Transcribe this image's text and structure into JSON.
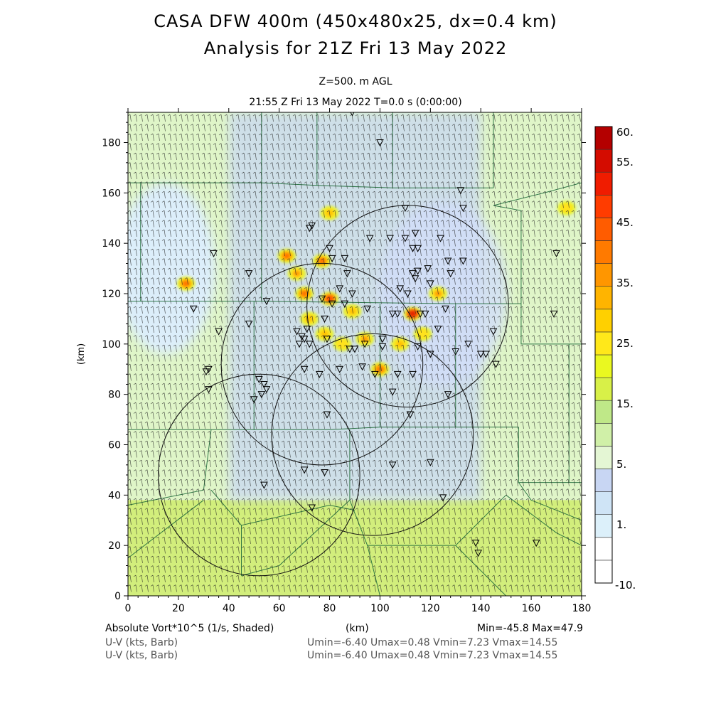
{
  "title_line1": "CASA DFW 400m (450x480x25, dx=0.4 km)",
  "title_line2": "Analysis for 21Z Fri 13 May 2022",
  "level_label": "Z=500. m AGL",
  "time_label": "21:55 Z Fri 13 May 2022    T=0.0 s (0:00:00)",
  "footer": {
    "field_label": "Absolute Vort*10^5 (1/s, Shaded)",
    "x_unit_label": "(km)",
    "minmax": "Min=-45.8 Max=47.9",
    "barb_label_1": "U-V (kts, Barb)",
    "barb_label_2": "U-V (kts, Barb)",
    "barb_stats_1": "Umin=-6.40 Umax=0.48 Vmin=7.23 Vmax=14.55",
    "barb_stats_2": "Umin=-6.40 Umax=0.48 Vmin=7.23 Vmax=14.55"
  },
  "colors": {
    "map_lines": "#1f6b3a",
    "radar_circles": "#111111",
    "barbs": "#222222",
    "stations": "#000000"
  },
  "chart_data": {
    "type": "heatmap",
    "field": "absolute vorticity",
    "xlabel": "",
    "ylabel": "(km)",
    "xlim": [
      0,
      180
    ],
    "ylim": [
      0,
      192
    ],
    "xticks": [
      0,
      20,
      40,
      60,
      80,
      100,
      120,
      140,
      160,
      180
    ],
    "yticks": [
      0,
      20,
      40,
      60,
      80,
      100,
      120,
      140,
      160,
      180
    ],
    "colorbar": {
      "labeled_levels": [
        "60.",
        "55.",
        "45.",
        "35.",
        "25.",
        "15.",
        "5.",
        "1.",
        "-10."
      ],
      "colors": [
        "#ffffff",
        "#ffffff",
        "#dcf0fa",
        "#cfe4f6",
        "#c8d6f3",
        "#e4f6d4",
        "#d0f0a8",
        "#bfe888",
        "#d8f048",
        "#eaf820",
        "#ffe81a",
        "#ffd000",
        "#ffb400",
        "#ff9600",
        "#ff7a00",
        "#ff5c00",
        "#ff3c00",
        "#f01c00",
        "#d40c00",
        "#b40000"
      ]
    },
    "background_regions": [
      {
        "x": [
          0,
          180
        ],
        "y": [
          0,
          38
        ],
        "level": "10-15"
      },
      {
        "x": [
          40,
          140
        ],
        "y": [
          38,
          192
        ],
        "level": "1-3"
      }
    ],
    "vorticity_cells": [
      {
        "x": 80,
        "y": 152,
        "value": 25
      },
      {
        "x": 63,
        "y": 135,
        "value": 35
      },
      {
        "x": 77,
        "y": 133,
        "value": 35
      },
      {
        "x": 67,
        "y": 128,
        "value": 30
      },
      {
        "x": 70,
        "y": 120,
        "value": 35
      },
      {
        "x": 80,
        "y": 118,
        "value": 40
      },
      {
        "x": 89,
        "y": 113,
        "value": 25
      },
      {
        "x": 113,
        "y": 112,
        "value": 45
      },
      {
        "x": 123,
        "y": 120,
        "value": 30
      },
      {
        "x": 23,
        "y": 124,
        "value": 35
      },
      {
        "x": 78,
        "y": 104,
        "value": 25
      },
      {
        "x": 94,
        "y": 102,
        "value": 30
      },
      {
        "x": 108,
        "y": 100,
        "value": 25
      },
      {
        "x": 100,
        "y": 90,
        "value": 35
      },
      {
        "x": 85,
        "y": 100,
        "value": 20
      },
      {
        "x": 117,
        "y": 104,
        "value": 20
      },
      {
        "x": 72,
        "y": 110,
        "value": 25
      },
      {
        "x": 174,
        "y": 154,
        "value": 20
      }
    ],
    "radar_circles": [
      {
        "cx": 111,
        "cy": 115,
        "r": 40
      },
      {
        "cx": 77,
        "cy": 92,
        "r": 40
      },
      {
        "cx": 52,
        "cy": 48,
        "r": 40
      },
      {
        "cx": 97,
        "cy": 64,
        "r": 40
      }
    ],
    "stations": [
      [
        89,
        192
      ],
      [
        100,
        180
      ],
      [
        132,
        161
      ],
      [
        133,
        154
      ],
      [
        110,
        154
      ],
      [
        73,
        147
      ],
      [
        72,
        146
      ],
      [
        104,
        142
      ],
      [
        96,
        142
      ],
      [
        110,
        142
      ],
      [
        114,
        144
      ],
      [
        113,
        138
      ],
      [
        115,
        138
      ],
      [
        124,
        142
      ],
      [
        133,
        133
      ],
      [
        127,
        133
      ],
      [
        128,
        128
      ],
      [
        119,
        130
      ],
      [
        115,
        129
      ],
      [
        120,
        124
      ],
      [
        114,
        126
      ],
      [
        113,
        128
      ],
      [
        108,
        122
      ],
      [
        111,
        120
      ],
      [
        34,
        136
      ],
      [
        48,
        128
      ],
      [
        80,
        138
      ],
      [
        81,
        134
      ],
      [
        86,
        134
      ],
      [
        87,
        128
      ],
      [
        84,
        122
      ],
      [
        86,
        116
      ],
      [
        89,
        120
      ],
      [
        81,
        116
      ],
      [
        77,
        118
      ],
      [
        78,
        110
      ],
      [
        26,
        114
      ],
      [
        36,
        105
      ],
      [
        48,
        108
      ],
      [
        55,
        117
      ],
      [
        67,
        105
      ],
      [
        69,
        103
      ],
      [
        71,
        106
      ],
      [
        95,
        114
      ],
      [
        105,
        112
      ],
      [
        107,
        112
      ],
      [
        116,
        112
      ],
      [
        118,
        112
      ],
      [
        126,
        114
      ],
      [
        123,
        106
      ],
      [
        135,
        100
      ],
      [
        142,
        96
      ],
      [
        145,
        105
      ],
      [
        146,
        92
      ],
      [
        170,
        136
      ],
      [
        169,
        112
      ],
      [
        130,
        97
      ],
      [
        140,
        96
      ],
      [
        120,
        96
      ],
      [
        115,
        99
      ],
      [
        101,
        102
      ],
      [
        101,
        99
      ],
      [
        90,
        98
      ],
      [
        94,
        100
      ],
      [
        68,
        100
      ],
      [
        70,
        102
      ],
      [
        72,
        100
      ],
      [
        79,
        102
      ],
      [
        88,
        98
      ],
      [
        70,
        90
      ],
      [
        76,
        88
      ],
      [
        84,
        90
      ],
      [
        93,
        91
      ],
      [
        98,
        88
      ],
      [
        107,
        88
      ],
      [
        113,
        88
      ],
      [
        127,
        80
      ],
      [
        105,
        81
      ],
      [
        32,
        90
      ],
      [
        31,
        89
      ],
      [
        52,
        86
      ],
      [
        54,
        84
      ],
      [
        55,
        82
      ],
      [
        53,
        80
      ],
      [
        50,
        78
      ],
      [
        32,
        82
      ],
      [
        79,
        72
      ],
      [
        112,
        72
      ],
      [
        70,
        50
      ],
      [
        78,
        49
      ],
      [
        105,
        52
      ],
      [
        120,
        53
      ],
      [
        54,
        44
      ],
      [
        125,
        39
      ],
      [
        73,
        35
      ],
      [
        138,
        21
      ],
      [
        139,
        17
      ],
      [
        162,
        21
      ]
    ]
  }
}
